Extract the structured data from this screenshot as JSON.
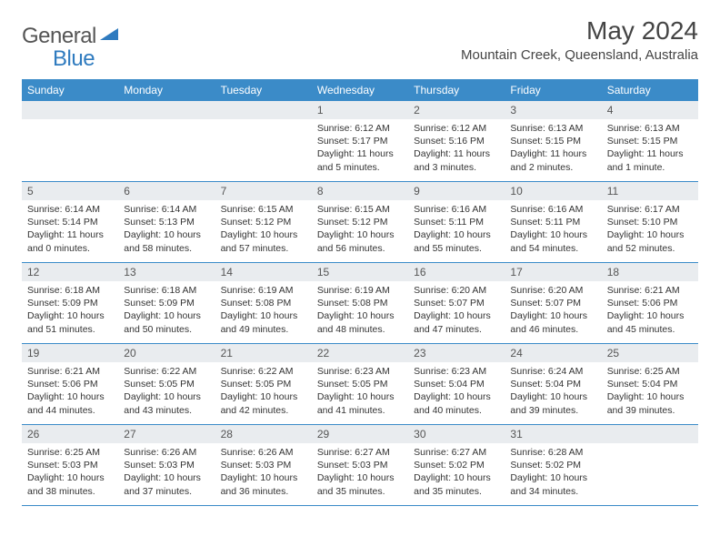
{
  "logo": {
    "general": "General",
    "blue": "Blue"
  },
  "title": "May 2024",
  "location": "Mountain Creek, Queensland, Australia",
  "colors": {
    "header_bg": "#3b8bc8",
    "daynum_bg": "#e9ecef",
    "border": "#3b8bc8",
    "logo_blue": "#2f7bbf",
    "text": "#333333"
  },
  "weekdays": [
    "Sunday",
    "Monday",
    "Tuesday",
    "Wednesday",
    "Thursday",
    "Friday",
    "Saturday"
  ],
  "weeks": [
    [
      {
        "num": "",
        "sunrise": "",
        "sunset": "",
        "daylight": ""
      },
      {
        "num": "",
        "sunrise": "",
        "sunset": "",
        "daylight": ""
      },
      {
        "num": "",
        "sunrise": "",
        "sunset": "",
        "daylight": ""
      },
      {
        "num": "1",
        "sunrise": "Sunrise: 6:12 AM",
        "sunset": "Sunset: 5:17 PM",
        "daylight": "Daylight: 11 hours and 5 minutes."
      },
      {
        "num": "2",
        "sunrise": "Sunrise: 6:12 AM",
        "sunset": "Sunset: 5:16 PM",
        "daylight": "Daylight: 11 hours and 3 minutes."
      },
      {
        "num": "3",
        "sunrise": "Sunrise: 6:13 AM",
        "sunset": "Sunset: 5:15 PM",
        "daylight": "Daylight: 11 hours and 2 minutes."
      },
      {
        "num": "4",
        "sunrise": "Sunrise: 6:13 AM",
        "sunset": "Sunset: 5:15 PM",
        "daylight": "Daylight: 11 hours and 1 minute."
      }
    ],
    [
      {
        "num": "5",
        "sunrise": "Sunrise: 6:14 AM",
        "sunset": "Sunset: 5:14 PM",
        "daylight": "Daylight: 11 hours and 0 minutes."
      },
      {
        "num": "6",
        "sunrise": "Sunrise: 6:14 AM",
        "sunset": "Sunset: 5:13 PM",
        "daylight": "Daylight: 10 hours and 58 minutes."
      },
      {
        "num": "7",
        "sunrise": "Sunrise: 6:15 AM",
        "sunset": "Sunset: 5:12 PM",
        "daylight": "Daylight: 10 hours and 57 minutes."
      },
      {
        "num": "8",
        "sunrise": "Sunrise: 6:15 AM",
        "sunset": "Sunset: 5:12 PM",
        "daylight": "Daylight: 10 hours and 56 minutes."
      },
      {
        "num": "9",
        "sunrise": "Sunrise: 6:16 AM",
        "sunset": "Sunset: 5:11 PM",
        "daylight": "Daylight: 10 hours and 55 minutes."
      },
      {
        "num": "10",
        "sunrise": "Sunrise: 6:16 AM",
        "sunset": "Sunset: 5:11 PM",
        "daylight": "Daylight: 10 hours and 54 minutes."
      },
      {
        "num": "11",
        "sunrise": "Sunrise: 6:17 AM",
        "sunset": "Sunset: 5:10 PM",
        "daylight": "Daylight: 10 hours and 52 minutes."
      }
    ],
    [
      {
        "num": "12",
        "sunrise": "Sunrise: 6:18 AM",
        "sunset": "Sunset: 5:09 PM",
        "daylight": "Daylight: 10 hours and 51 minutes."
      },
      {
        "num": "13",
        "sunrise": "Sunrise: 6:18 AM",
        "sunset": "Sunset: 5:09 PM",
        "daylight": "Daylight: 10 hours and 50 minutes."
      },
      {
        "num": "14",
        "sunrise": "Sunrise: 6:19 AM",
        "sunset": "Sunset: 5:08 PM",
        "daylight": "Daylight: 10 hours and 49 minutes."
      },
      {
        "num": "15",
        "sunrise": "Sunrise: 6:19 AM",
        "sunset": "Sunset: 5:08 PM",
        "daylight": "Daylight: 10 hours and 48 minutes."
      },
      {
        "num": "16",
        "sunrise": "Sunrise: 6:20 AM",
        "sunset": "Sunset: 5:07 PM",
        "daylight": "Daylight: 10 hours and 47 minutes."
      },
      {
        "num": "17",
        "sunrise": "Sunrise: 6:20 AM",
        "sunset": "Sunset: 5:07 PM",
        "daylight": "Daylight: 10 hours and 46 minutes."
      },
      {
        "num": "18",
        "sunrise": "Sunrise: 6:21 AM",
        "sunset": "Sunset: 5:06 PM",
        "daylight": "Daylight: 10 hours and 45 minutes."
      }
    ],
    [
      {
        "num": "19",
        "sunrise": "Sunrise: 6:21 AM",
        "sunset": "Sunset: 5:06 PM",
        "daylight": "Daylight: 10 hours and 44 minutes."
      },
      {
        "num": "20",
        "sunrise": "Sunrise: 6:22 AM",
        "sunset": "Sunset: 5:05 PM",
        "daylight": "Daylight: 10 hours and 43 minutes."
      },
      {
        "num": "21",
        "sunrise": "Sunrise: 6:22 AM",
        "sunset": "Sunset: 5:05 PM",
        "daylight": "Daylight: 10 hours and 42 minutes."
      },
      {
        "num": "22",
        "sunrise": "Sunrise: 6:23 AM",
        "sunset": "Sunset: 5:05 PM",
        "daylight": "Daylight: 10 hours and 41 minutes."
      },
      {
        "num": "23",
        "sunrise": "Sunrise: 6:23 AM",
        "sunset": "Sunset: 5:04 PM",
        "daylight": "Daylight: 10 hours and 40 minutes."
      },
      {
        "num": "24",
        "sunrise": "Sunrise: 6:24 AM",
        "sunset": "Sunset: 5:04 PM",
        "daylight": "Daylight: 10 hours and 39 minutes."
      },
      {
        "num": "25",
        "sunrise": "Sunrise: 6:25 AM",
        "sunset": "Sunset: 5:04 PM",
        "daylight": "Daylight: 10 hours and 39 minutes."
      }
    ],
    [
      {
        "num": "26",
        "sunrise": "Sunrise: 6:25 AM",
        "sunset": "Sunset: 5:03 PM",
        "daylight": "Daylight: 10 hours and 38 minutes."
      },
      {
        "num": "27",
        "sunrise": "Sunrise: 6:26 AM",
        "sunset": "Sunset: 5:03 PM",
        "daylight": "Daylight: 10 hours and 37 minutes."
      },
      {
        "num": "28",
        "sunrise": "Sunrise: 6:26 AM",
        "sunset": "Sunset: 5:03 PM",
        "daylight": "Daylight: 10 hours and 36 minutes."
      },
      {
        "num": "29",
        "sunrise": "Sunrise: 6:27 AM",
        "sunset": "Sunset: 5:03 PM",
        "daylight": "Daylight: 10 hours and 35 minutes."
      },
      {
        "num": "30",
        "sunrise": "Sunrise: 6:27 AM",
        "sunset": "Sunset: 5:02 PM",
        "daylight": "Daylight: 10 hours and 35 minutes."
      },
      {
        "num": "31",
        "sunrise": "Sunrise: 6:28 AM",
        "sunset": "Sunset: 5:02 PM",
        "daylight": "Daylight: 10 hours and 34 minutes."
      },
      {
        "num": "",
        "sunrise": "",
        "sunset": "",
        "daylight": ""
      }
    ]
  ]
}
